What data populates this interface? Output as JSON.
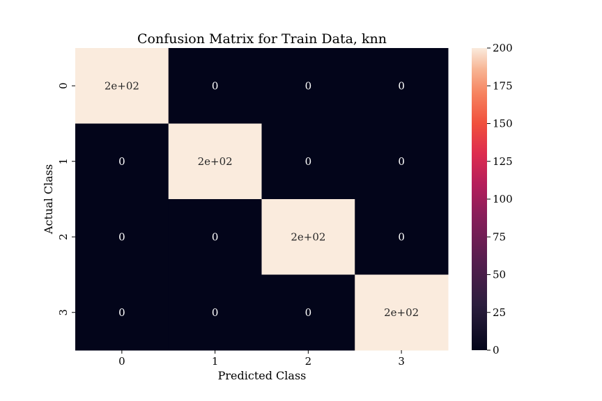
{
  "chart_data": {
    "type": "heatmap",
    "title": "Confusion Matrix for Train Data, knn",
    "xlabel": "Predicted Class",
    "ylabel": "Actual Class",
    "x_categories": [
      "0",
      "1",
      "2",
      "3"
    ],
    "y_categories": [
      "0",
      "1",
      "2",
      "3"
    ],
    "values": [
      [
        200,
        0,
        0,
        0
      ],
      [
        0,
        200,
        0,
        0
      ],
      [
        0,
        0,
        200,
        0
      ],
      [
        0,
        0,
        0,
        200
      ]
    ],
    "cell_labels": [
      [
        "2e+02",
        "0",
        "0",
        "0"
      ],
      [
        "0",
        "2e+02",
        "0",
        "0"
      ],
      [
        "0",
        "0",
        "2e+02",
        "0"
      ],
      [
        "0",
        "0",
        "0",
        "2e+02"
      ]
    ],
    "colorbar": {
      "min": 0,
      "max": 200,
      "ticks": [
        0,
        25,
        50,
        75,
        100,
        125,
        150,
        175,
        200
      ],
      "colormap": "rocket",
      "low_color": "#03051a",
      "high_color": "#faebdd"
    }
  }
}
